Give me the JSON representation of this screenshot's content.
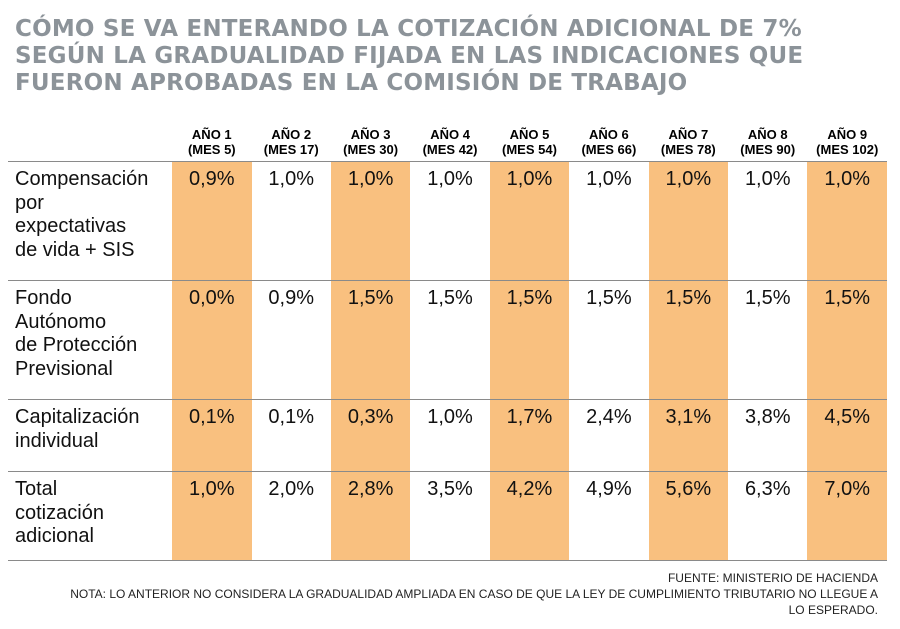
{
  "title_lines": [
    "CÓMO SE VA ENTERANDO LA COTIZACIÓN ADICIONAL DE 7%",
    "SEGÚN LA GRADUALIDAD FIJADA EN LAS INDICACIONES QUE",
    "FUERON APROBADAS EN LA COMISIÓN DE TRABAJO"
  ],
  "chart_data": {
    "type": "table",
    "columns": [
      {
        "year": "AÑO 1",
        "month": "(MES 5)",
        "highlight": true
      },
      {
        "year": "AÑO 2",
        "month": "(MES 17)",
        "highlight": false
      },
      {
        "year": "AÑO 3",
        "month": "(MES 30)",
        "highlight": true
      },
      {
        "year": "AÑO 4",
        "month": "(MES 42)",
        "highlight": false
      },
      {
        "year": "AÑO 5",
        "month": "(MES 54)",
        "highlight": true
      },
      {
        "year": "AÑO 6",
        "month": "(MES 66)",
        "highlight": false
      },
      {
        "year": "AÑO 7",
        "month": "(MES 78)",
        "highlight": true
      },
      {
        "year": "AÑO 8",
        "month": "(MES 90)",
        "highlight": false
      },
      {
        "year": "AÑO 9",
        "month": "(MES 102)",
        "highlight": true
      }
    ],
    "rows": [
      {
        "label_lines": [
          "Compensación",
          "por",
          "expectativas",
          "de vida + SIS"
        ],
        "values": [
          "0,9%",
          "1,0%",
          "1,0%",
          "1,0%",
          "1,0%",
          "1,0%",
          "1,0%",
          "1,0%",
          "1,0%"
        ]
      },
      {
        "label_lines": [
          "Fondo",
          "Autónomo",
          "de Protección",
          "Previsional"
        ],
        "values": [
          "0,0%",
          "0,9%",
          "1,5%",
          "1,5%",
          "1,5%",
          "1,5%",
          "1,5%",
          "1,5%",
          "1,5%"
        ]
      },
      {
        "label_lines": [
          "Capitalización",
          "individual"
        ],
        "values": [
          "0,1%",
          "0,1%",
          "0,3%",
          "1,0%",
          "1,7%",
          "2,4%",
          "3,1%",
          "3,8%",
          "4,5%"
        ]
      },
      {
        "label_lines": [
          "Total",
          "cotización",
          "adicional"
        ],
        "values": [
          "1,0%",
          "2,0%",
          "2,8%",
          "3,5%",
          "4,2%",
          "4,9%",
          "5,6%",
          "6,3%",
          "7,0%"
        ]
      }
    ],
    "highlight_color": "#f9c07f"
  },
  "footer": {
    "source": "FUENTE: MINISTERIO DE HACIENDA",
    "note_line1": "NOTA: LO ANTERIOR NO CONSIDERA LA GRADUALIDAD AMPLIADA EN CASO DE QUE LA LEY DE CUMPLIMIENTO TRIBUTARIO NO LLEGUE A",
    "note_line2": "LO ESPERADO."
  },
  "colors": {
    "title": "#8c9399",
    "highlight": "#f9c07f",
    "rule": "#8a8a8a"
  }
}
